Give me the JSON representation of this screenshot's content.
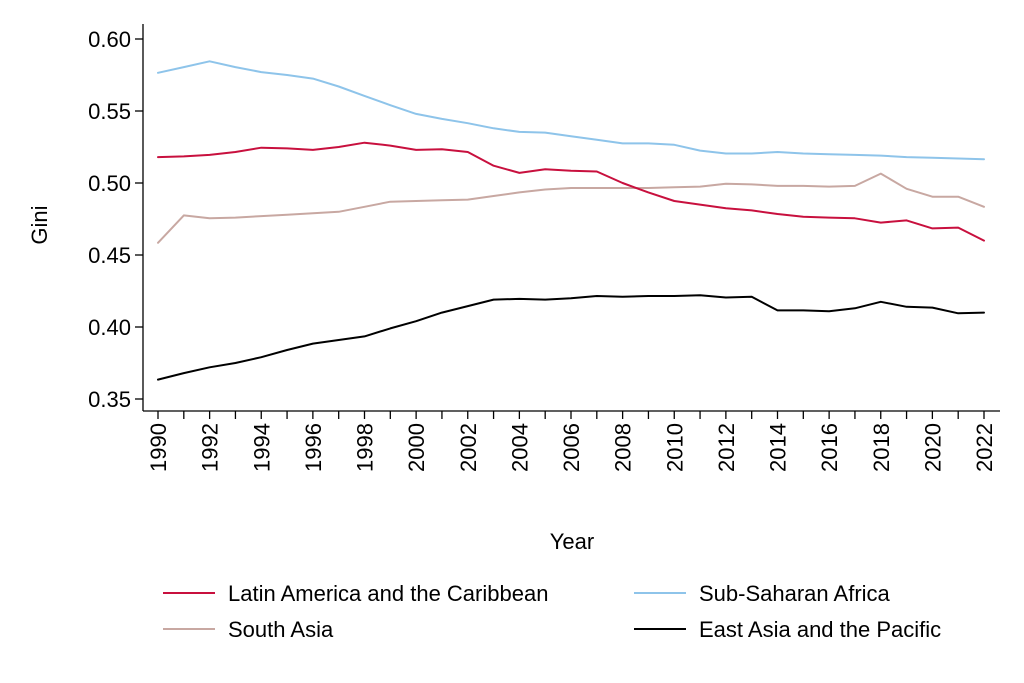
{
  "chart_data": {
    "type": "line",
    "title": "",
    "xlabel": "Year",
    "ylabel": "Gini",
    "xlim": [
      1990,
      2022
    ],
    "ylim": [
      0.35,
      0.6
    ],
    "yticks": [
      "0.35",
      "0.40",
      "0.45",
      "0.50",
      "0.55",
      "0.60"
    ],
    "xticks": [
      "1990",
      "1992",
      "1994",
      "1996",
      "1998",
      "2000",
      "2002",
      "2004",
      "2006",
      "2008",
      "2010",
      "2012",
      "2014",
      "2016",
      "2018",
      "2020",
      "2022"
    ],
    "grid": false,
    "legend_position": "bottom",
    "x": [
      1990,
      1991,
      1992,
      1993,
      1994,
      1995,
      1996,
      1997,
      1998,
      1999,
      2000,
      2001,
      2002,
      2003,
      2004,
      2005,
      2006,
      2007,
      2008,
      2009,
      2010,
      2011,
      2012,
      2013,
      2014,
      2015,
      2016,
      2017,
      2018,
      2019,
      2020,
      2021,
      2022
    ],
    "series": [
      {
        "name": "Latin America and the Caribbean",
        "color": "#c8103e",
        "values": [
          0.518,
          0.5185,
          0.5195,
          0.5215,
          0.5245,
          0.524,
          0.523,
          0.525,
          0.528,
          0.526,
          0.523,
          0.5235,
          0.5215,
          0.512,
          0.507,
          0.5095,
          0.5085,
          0.508,
          0.5,
          0.4935,
          0.4875,
          0.485,
          0.4825,
          0.481,
          0.4785,
          0.4765,
          0.476,
          0.4755,
          0.4725,
          0.474,
          0.4685,
          0.469,
          0.46
        ]
      },
      {
        "name": "Sub-Saharan Africa",
        "color": "#8ec4ea",
        "values": [
          0.5765,
          0.5805,
          0.5845,
          0.5805,
          0.577,
          0.575,
          0.5725,
          0.567,
          0.5605,
          0.554,
          0.548,
          0.5445,
          0.5415,
          0.538,
          0.5355,
          0.535,
          0.5325,
          0.53,
          0.5275,
          0.5275,
          0.5265,
          0.5225,
          0.5205,
          0.5205,
          0.5215,
          0.5205,
          0.52,
          0.5195,
          0.519,
          0.518,
          0.5175,
          0.517,
          0.5165
        ]
      },
      {
        "name": "South Asia",
        "color": "#c8a8a2",
        "values": [
          0.4585,
          0.4775,
          0.4755,
          0.476,
          0.477,
          0.478,
          0.479,
          0.48,
          0.4835,
          0.487,
          0.4875,
          0.488,
          0.4885,
          0.491,
          0.4935,
          0.4955,
          0.4965,
          0.4965,
          0.4965,
          0.4965,
          0.497,
          0.4975,
          0.4995,
          0.499,
          0.498,
          0.498,
          0.4975,
          0.498,
          0.5065,
          0.496,
          0.4905,
          0.4905,
          0.4835
        ]
      },
      {
        "name": "East Asia and the Pacific",
        "color": "#000000",
        "values": [
          0.3635,
          0.368,
          0.372,
          0.375,
          0.379,
          0.384,
          0.3885,
          0.391,
          0.3935,
          0.399,
          0.404,
          0.41,
          0.4145,
          0.419,
          0.4195,
          0.419,
          0.42,
          0.4215,
          0.421,
          0.4215,
          0.4215,
          0.422,
          0.4205,
          0.421,
          0.4115,
          0.4115,
          0.411,
          0.413,
          0.4175,
          0.414,
          0.4135,
          0.4095,
          0.41
        ]
      }
    ]
  }
}
